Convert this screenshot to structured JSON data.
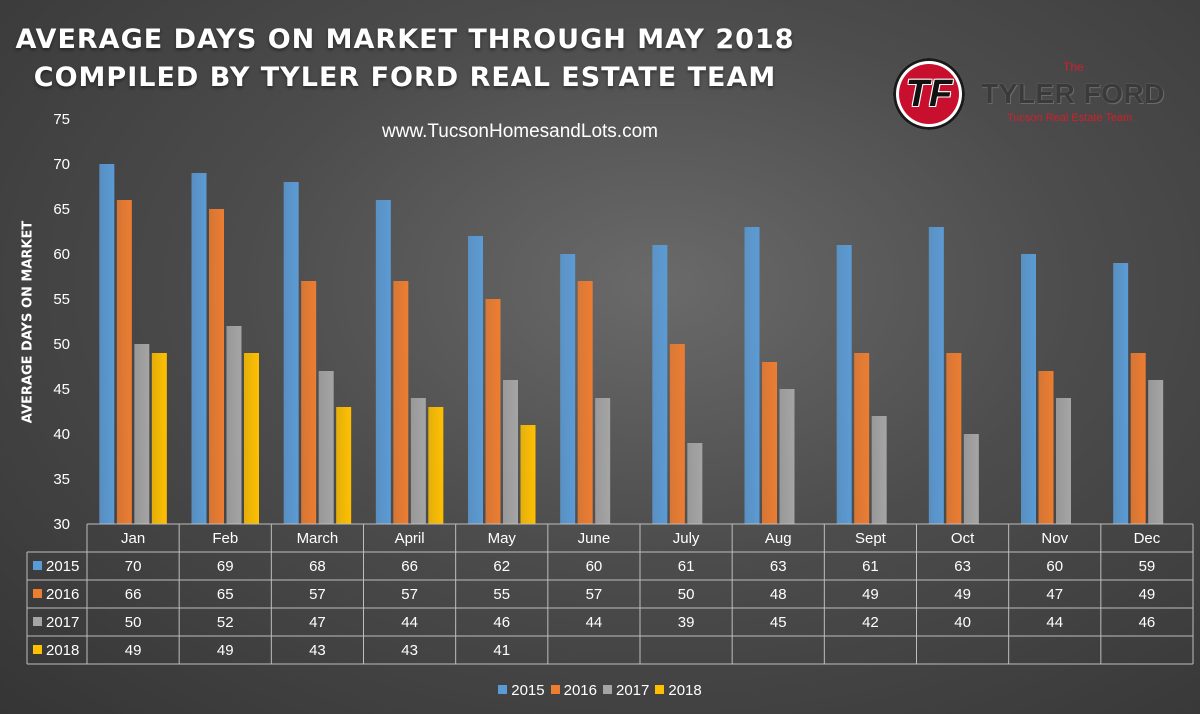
{
  "header": {
    "title_line1": "AVERAGE DAYS ON MARKET THROUGH MAY 2018",
    "title_line2": "COMPILED BY TYLER FORD REAL ESTATE TEAM",
    "website": "www.TucsonHomesandLots.com"
  },
  "logo": {
    "monogram": "TF",
    "the": "The",
    "name": "TYLER FORD",
    "tagline": "Tucson Real Estate Team"
  },
  "chart_data": {
    "type": "bar",
    "title": "AVERAGE DAYS ON MARKET THROUGH MAY 2018",
    "ylabel": "AVERAGE DAYS ON MARKET",
    "xlabel": "",
    "ylim": [
      30,
      75
    ],
    "yticks": [
      30,
      35,
      40,
      45,
      50,
      55,
      60,
      65,
      70,
      75
    ],
    "grid": false,
    "legend_position": "bottom",
    "data_table": true,
    "categories": [
      "Jan",
      "Feb",
      "March",
      "April",
      "May",
      "June",
      "July",
      "Aug",
      "Sept",
      "Oct",
      "Nov",
      "Dec"
    ],
    "series": [
      {
        "name": "2015",
        "color": "#5b9bd5",
        "values": [
          70,
          69,
          68,
          66,
          62,
          60,
          61,
          63,
          61,
          63,
          60,
          59
        ]
      },
      {
        "name": "2016",
        "color": "#ed7d31",
        "values": [
          66,
          65,
          57,
          57,
          55,
          57,
          50,
          48,
          49,
          49,
          47,
          49
        ]
      },
      {
        "name": "2017",
        "color": "#a5a5a5",
        "values": [
          50,
          52,
          47,
          44,
          46,
          44,
          39,
          45,
          42,
          40,
          44,
          46
        ]
      },
      {
        "name": "2018",
        "color": "#ffc000",
        "values": [
          49,
          49,
          43,
          43,
          41,
          null,
          null,
          null,
          null,
          null,
          null,
          null
        ]
      }
    ]
  }
}
